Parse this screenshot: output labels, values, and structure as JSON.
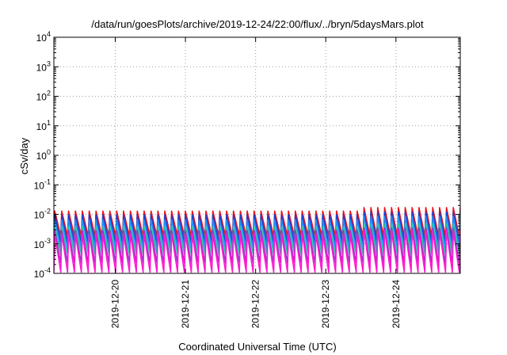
{
  "chart_data": {
    "type": "line",
    "title": "/data/run/goesPlots/archive/2019-12-24/22:00/flux/../bryn/5daysMars.plot",
    "xlabel": "Coordinated Universal Time (UTC)",
    "ylabel": "cSv/day",
    "yscale": "log",
    "ylim": [
      0.0001,
      10000
    ],
    "xlim": [
      "2019-12-19T03:00",
      "2019-12-24T22:00"
    ],
    "x_ticks": [
      "2019-12-20",
      "2019-12-21",
      "2019-12-22",
      "2019-12-23",
      "2019-12-24"
    ],
    "y_ticks": [
      {
        "base": "10",
        "exp": "-4"
      },
      {
        "base": "10",
        "exp": "-3"
      },
      {
        "base": "10",
        "exp": "-2"
      },
      {
        "base": "10",
        "exp": "-1"
      },
      {
        "base": "10",
        "exp": "0"
      },
      {
        "base": "10",
        "exp": "1"
      },
      {
        "base": "10",
        "exp": "2"
      },
      {
        "base": "10",
        "exp": "3"
      },
      {
        "base": "10",
        "exp": "4"
      }
    ],
    "grid": true,
    "sawtooth_period_hours": 2.35,
    "series": [
      {
        "color": "#e8141b",
        "peak": 0.013,
        "trough": 0.0018,
        "late_peak": 0.017
      },
      {
        "color": "#1f3fd0",
        "peak": 0.0095,
        "trough": 0.0011,
        "late_peak": 0.012
      },
      {
        "color": "#1e90ff",
        "peak": 0.0065,
        "trough": 0.0007,
        "late_peak": 0.0085
      },
      {
        "color": "#1fc9a0",
        "peak": 0.0038,
        "trough": 0.00045,
        "late_peak": 0.0048
      },
      {
        "color": "#9b30d0",
        "peak": 0.0028,
        "trough": 0.00022,
        "late_peak": 0.0034
      },
      {
        "color": "#ff18d0",
        "peak": 0.0022,
        "trough": 0.00011,
        "late_peak": 0.0028
      }
    ]
  }
}
